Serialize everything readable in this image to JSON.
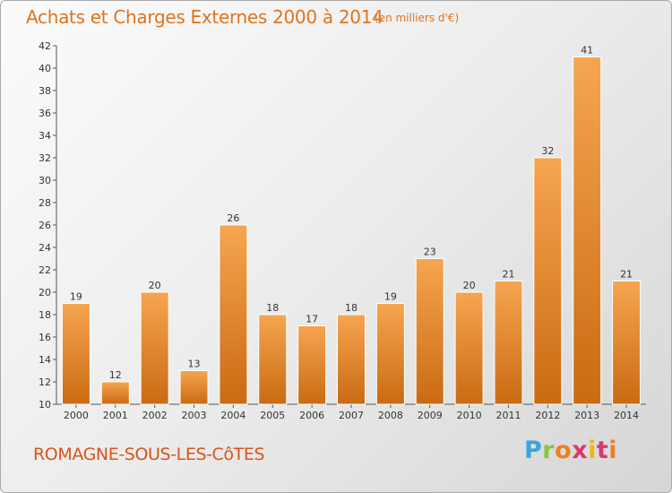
{
  "header": {
    "title": "Achats et Charges Externes 2000 à 2014",
    "subtitle": "(en milliers d'€)"
  },
  "footer": {
    "town": "ROMAGNE-SOUS-LES-CôTES",
    "logo_letters": [
      "P",
      "r",
      "o",
      "x",
      "i",
      "t",
      "i"
    ]
  },
  "colors": {
    "title": "#e0741c",
    "bar_top": "#f6a550",
    "bar_bottom": "#c96b12",
    "town": "#d9541a"
  },
  "chart_data": {
    "type": "bar",
    "title": "Achats et Charges Externes 2000 à 2014",
    "subtitle": "(en milliers d'€)",
    "categories": [
      "2000",
      "2001",
      "2002",
      "2003",
      "2004",
      "2005",
      "2006",
      "2007",
      "2008",
      "2009",
      "2010",
      "2011",
      "2012",
      "2013",
      "2014"
    ],
    "values": [
      19,
      12,
      20,
      13,
      26,
      18,
      17,
      18,
      19,
      23,
      20,
      21,
      32,
      41,
      21
    ],
    "ylim": [
      10,
      42
    ],
    "yticks": [
      10,
      12,
      14,
      16,
      18,
      20,
      22,
      24,
      26,
      28,
      30,
      32,
      34,
      36,
      38,
      40,
      42
    ],
    "grid": false,
    "data_labels": true
  }
}
